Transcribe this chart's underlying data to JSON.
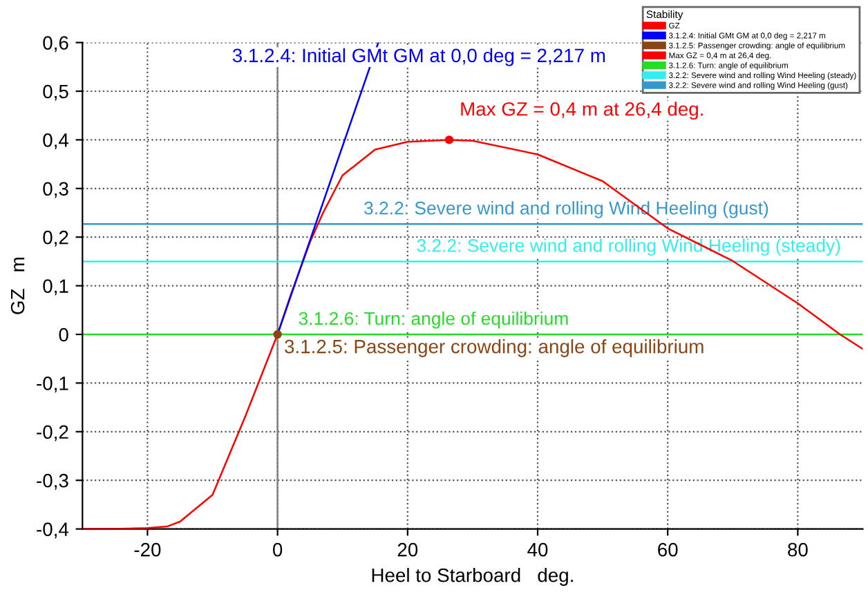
{
  "chart_data": {
    "type": "line",
    "xlabel": "Heel to Starboard   deg.",
    "ylabel": "GZ   m",
    "legend_title": "Stability",
    "xlim": [
      -30,
      90
    ],
    "ylim": [
      -0.4,
      0.6
    ],
    "xticks": [
      -20,
      0,
      20,
      40,
      60,
      80
    ],
    "yticks": [
      {
        "value": -0.4,
        "label": "-0,4"
      },
      {
        "value": -0.3,
        "label": "-0,3"
      },
      {
        "value": -0.2,
        "label": "-0,2"
      },
      {
        "value": -0.1,
        "label": "-0,1"
      },
      0,
      {
        "value": 0.1,
        "label": "0,1"
      },
      {
        "value": 0.2,
        "label": "0,2"
      },
      {
        "value": 0.3,
        "label": "0,3"
      },
      {
        "value": 0.4,
        "label": "0,4"
      },
      {
        "value": 0.5,
        "label": "0,5"
      },
      {
        "value": 0.6,
        "label": "0,6"
      }
    ],
    "grid": true,
    "legend": "top right",
    "series": [
      {
        "name": "GZ",
        "color": "#ff0000",
        "x": [
          -30,
          -25,
          -20,
          -17,
          -15,
          -10,
          -5,
          0,
          2,
          5,
          7,
          10,
          15,
          20,
          26.4,
          30,
          40,
          50,
          60,
          70,
          80,
          86.5,
          90
        ],
        "values": [
          -0.4,
          -0.4,
          -0.398,
          -0.395,
          -0.385,
          -0.33,
          -0.17,
          0,
          0.08,
          0.19,
          0.25,
          0.327,
          0.38,
          0.396,
          0.4,
          0.398,
          0.37,
          0.315,
          0.218,
          0.151,
          0.064,
          0,
          -0.03
        ]
      },
      {
        "name": "3.1.2.4: Initial GMt GM at 0,0 deg = 2,217 m",
        "color": "#0000ff",
        "x": [
          0,
          15.5
        ],
        "values": [
          0,
          0.6
        ]
      },
      {
        "name": "3.1.2.5: Passenger crowding: angle of equilibrium",
        "type": "scatter",
        "color": "#8b4513",
        "x": [
          0
        ],
        "values": [
          0
        ]
      },
      {
        "name": "Max GZ = 0,4 m at 26,4 deg.",
        "type": "scatter",
        "color": "#ff0000",
        "x": [
          26.4
        ],
        "values": [
          0.4
        ]
      }
    ],
    "ref_lines": [
      {
        "axis": "x",
        "value": 0,
        "color": "#808080"
      },
      {
        "axis": "y",
        "value": 0,
        "color": "#22dd22",
        "label": "3.1.2.6: Turn: angle of equilibrium"
      },
      {
        "axis": "y",
        "value": 0.15,
        "color": "#33eeee",
        "label": "3.2.2: Severe wind and rolling Wind Heeling (steady)"
      },
      {
        "axis": "y",
        "value": 0.227,
        "color": "#3399cc",
        "label": "3.2.2: Severe wind and rolling Wind Heeling (gust)"
      }
    ]
  }
}
